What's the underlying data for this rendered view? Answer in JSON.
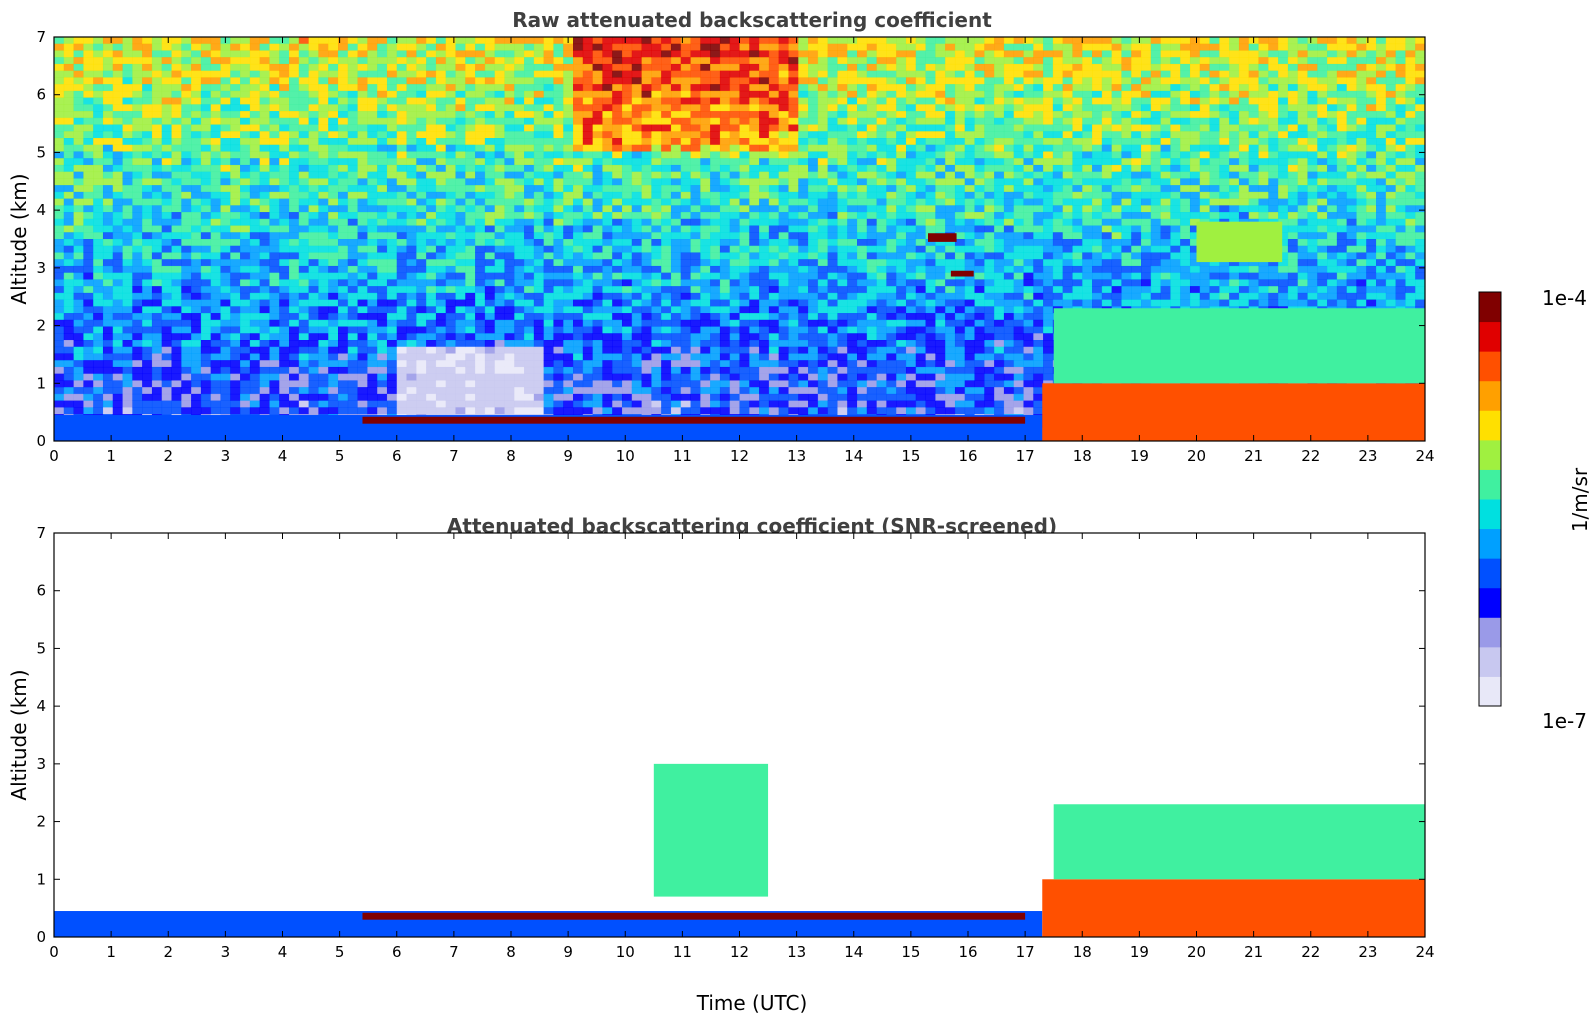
{
  "chart_data": [
    {
      "type": "heatmap",
      "title": "Raw attenuated backscattering coefficient",
      "xlabel": "",
      "ylabel": "Altitude (km)",
      "xlim": [
        0,
        24
      ],
      "ylim": [
        0,
        7
      ],
      "x_ticks": [
        "0",
        "1",
        "2",
        "3",
        "4",
        "5",
        "6",
        "7",
        "8",
        "9",
        "10",
        "11",
        "12",
        "13",
        "14",
        "15",
        "16",
        "17",
        "18",
        "19",
        "20",
        "21",
        "22",
        "23",
        "24"
      ],
      "y_ticks": [
        "0",
        "1",
        "2",
        "3",
        "4",
        "5",
        "6",
        "7"
      ],
      "features": [
        {
          "name": "surface layer",
          "t_start": 0,
          "t_end": 17.3,
          "alt_bottom": 0,
          "alt_top": 0.45,
          "level": 0.3
        },
        {
          "name": "boundary-layer top",
          "t_start": 5.4,
          "t_end": 17.0,
          "alt_bottom": 0.3,
          "alt_top": 0.42,
          "level": 0.95
        },
        {
          "name": "dense aerosol",
          "t_start": 17.3,
          "t_end": 24,
          "alt_bottom": 0,
          "alt_top": 1.0,
          "level": 0.82
        },
        {
          "name": "plumes",
          "t_start": 17.5,
          "t_end": 24,
          "alt_bottom": 1.0,
          "alt_top": 2.3,
          "level": 0.55
        },
        {
          "name": "cloud",
          "t_start": 15.3,
          "t_end": 15.8,
          "alt_bottom": 3.45,
          "alt_top": 3.6,
          "level": 0.97
        },
        {
          "name": "cloud",
          "t_start": 15.7,
          "t_end": 16.1,
          "alt_bottom": 2.85,
          "alt_top": 2.95,
          "level": 0.97
        },
        {
          "name": "aerosol layer",
          "t_start": 20.0,
          "t_end": 21.5,
          "alt_bottom": 3.1,
          "alt_top": 3.8,
          "level": 0.6
        }
      ]
    },
    {
      "type": "heatmap",
      "title": "Attenuated backscattering coefficient (SNR-screened)",
      "xlabel": "Time (UTC)",
      "ylabel": "Altitude (km)",
      "xlim": [
        0,
        24
      ],
      "ylim": [
        0,
        7
      ],
      "x_ticks": [
        "0",
        "1",
        "2",
        "3",
        "4",
        "5",
        "6",
        "7",
        "8",
        "9",
        "10",
        "11",
        "12",
        "13",
        "14",
        "15",
        "16",
        "17",
        "18",
        "19",
        "20",
        "21",
        "22",
        "23",
        "24"
      ],
      "y_ticks": [
        "0",
        "1",
        "2",
        "3",
        "4",
        "5",
        "6",
        "7"
      ],
      "features": [
        {
          "name": "surface layer",
          "t_start": 0,
          "t_end": 17.3,
          "alt_bottom": 0,
          "alt_top": 0.45,
          "level": 0.3
        },
        {
          "name": "boundary-layer top",
          "t_start": 5.4,
          "t_end": 17.0,
          "alt_bottom": 0.3,
          "alt_top": 0.42,
          "level": 1.0
        },
        {
          "name": "dense aerosol",
          "t_start": 17.3,
          "t_end": 24,
          "alt_bottom": 0,
          "alt_top": 1.0,
          "level": 0.82
        },
        {
          "name": "plumes",
          "t_start": 17.5,
          "t_end": 24,
          "alt_bottom": 1.0,
          "alt_top": 2.3,
          "level": 0.5
        },
        {
          "name": "mid-level aerosol",
          "t_start": 10.5,
          "t_end": 12.5,
          "alt_bottom": 0.7,
          "alt_top": 3.0,
          "level": 0.55
        }
      ]
    }
  ],
  "colorbar": {
    "label": "1/m/sr",
    "max_label": "1e-4",
    "min_label": "1e-7",
    "colors": [
      "#e8e8f8",
      "#c8c8f0",
      "#9a9ae8",
      "#0000ff",
      "#0050ff",
      "#00a0ff",
      "#00e0e0",
      "#40f0a0",
      "#a0f040",
      "#ffe000",
      "#ffa000",
      "#ff5000",
      "#e00000",
      "#800000"
    ]
  }
}
